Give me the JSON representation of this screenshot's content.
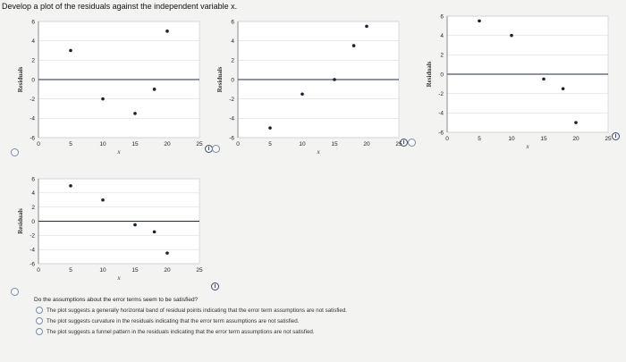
{
  "prompt": "Develop a plot of the residuals against the independent variable x.",
  "question": {
    "text": "Do the assumptions about the error terms seem to be satisfied?",
    "options": [
      "The plot suggests a generally horizontal band of residual points indicating that the error term assumptions are not satisfied.",
      "The plot suggests curvature in the residuals indicating that the error term assumptions are not satisfied.",
      "The plot suggests a funnel pattern in the residuals indicating that the error term assumptions are not satisfied."
    ]
  },
  "colors": {
    "point": "#1b1f33",
    "zero_line": "#1e2a4a",
    "grid": "#c9c9c9",
    "axis": "#555555",
    "plot_bg": "#ffffff"
  },
  "chart_data": [
    {
      "type": "scatter",
      "ylabel": "Residuals",
      "xlabel": "x",
      "xlim": [
        0,
        25
      ],
      "ylim": [
        -6,
        6
      ],
      "xticks": [
        0,
        5,
        10,
        15,
        20,
        25
      ],
      "yticks": [
        6,
        4,
        2,
        0,
        -2,
        -4,
        -6
      ],
      "points": [
        [
          5,
          3
        ],
        [
          10,
          -2
        ],
        [
          15,
          -3.5
        ],
        [
          18,
          -1
        ],
        [
          20,
          5
        ]
      ],
      "grid": true
    },
    {
      "type": "scatter",
      "ylabel": "Residuals",
      "xlabel": "x",
      "xlim": [
        0,
        25
      ],
      "ylim": [
        -6,
        6
      ],
      "xticks": [
        0,
        5,
        10,
        15,
        20,
        25
      ],
      "yticks": [
        6,
        4,
        2,
        0,
        -2,
        -4,
        -6
      ],
      "points": [
        [
          5,
          -5
        ],
        [
          10,
          -1.5
        ],
        [
          15,
          0
        ],
        [
          18,
          3.5
        ],
        [
          20,
          5.5
        ]
      ],
      "grid": true
    },
    {
      "type": "scatter",
      "ylabel": "Residuals",
      "xlabel": "x",
      "xlim": [
        0,
        25
      ],
      "ylim": [
        -6,
        6
      ],
      "xticks": [
        0,
        5,
        10,
        15,
        20,
        25
      ],
      "yticks": [
        6,
        4,
        2,
        0,
        -2,
        -4,
        -6
      ],
      "points": [
        [
          5,
          5.5
        ],
        [
          10,
          4
        ],
        [
          15,
          -0.5
        ],
        [
          18,
          -1.5
        ],
        [
          20,
          -5
        ]
      ],
      "grid": true
    },
    {
      "type": "scatter",
      "ylabel": "Residuals",
      "xlabel": "x",
      "xlim": [
        0,
        25
      ],
      "ylim": [
        -6,
        6
      ],
      "xticks": [
        0,
        5,
        10,
        15,
        20,
        25
      ],
      "yticks": [
        6,
        4,
        2,
        0,
        -2,
        -4,
        -6
      ],
      "points": [
        [
          5,
          5
        ],
        [
          10,
          3
        ],
        [
          15,
          -0.5
        ],
        [
          18,
          -1.5
        ],
        [
          20,
          -4.5
        ]
      ],
      "grid": true
    }
  ]
}
